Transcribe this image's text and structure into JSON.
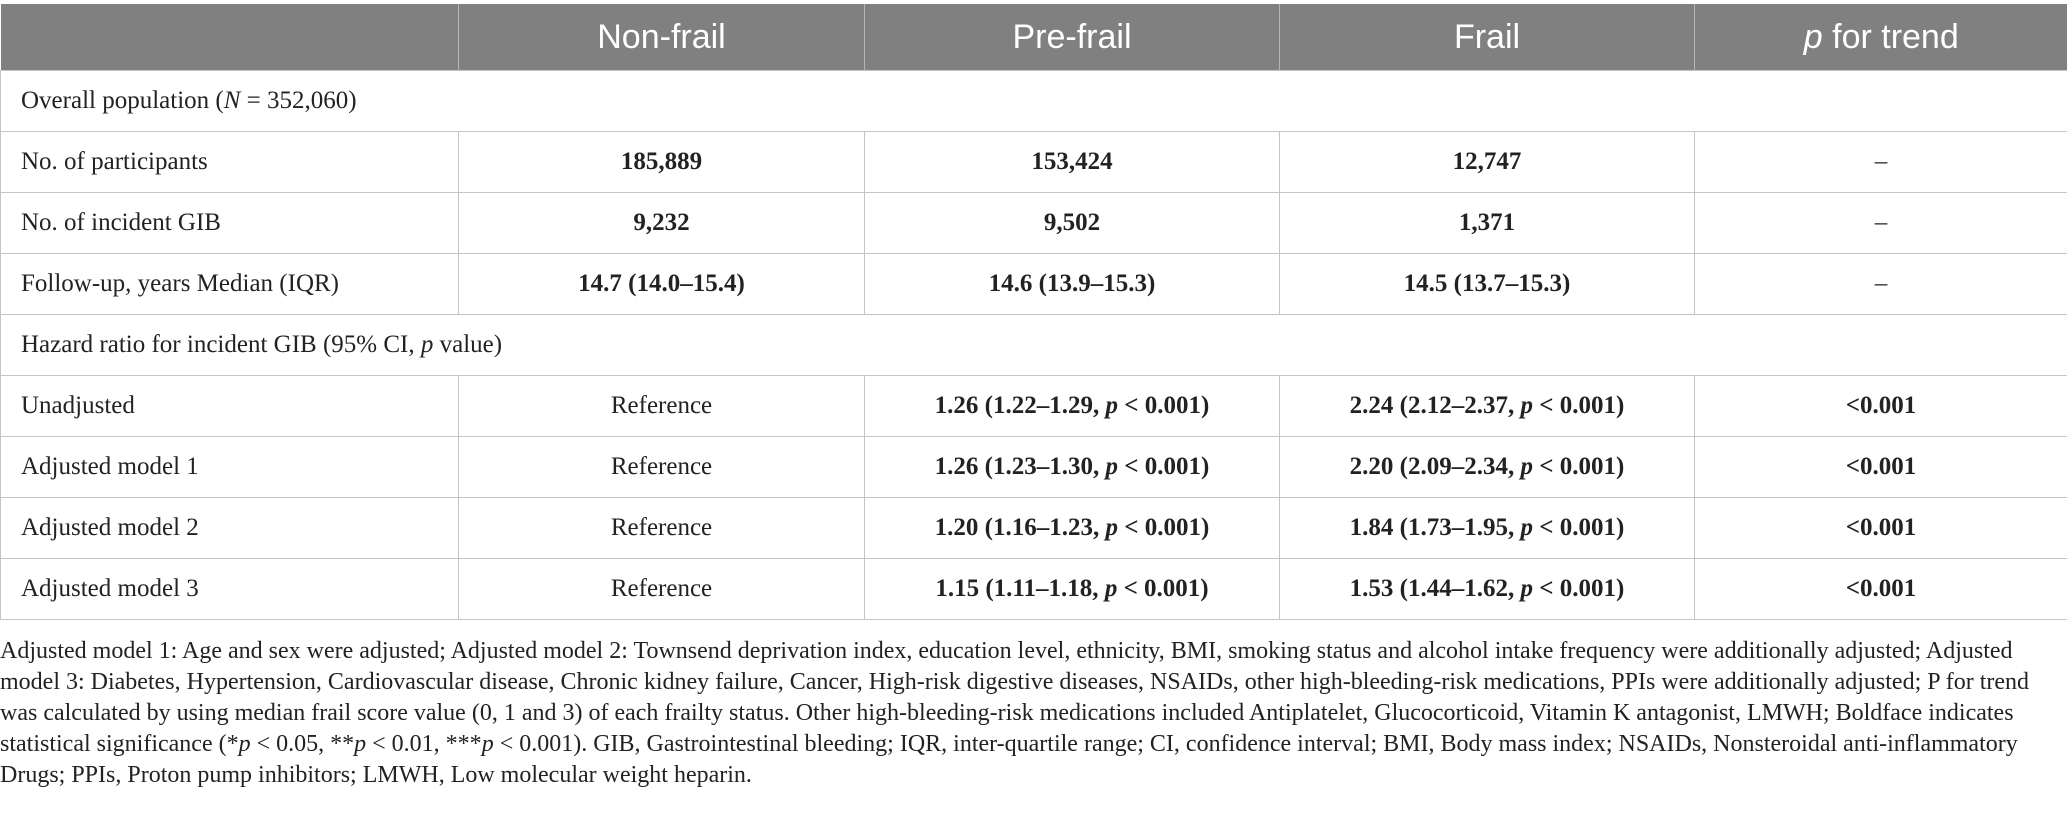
{
  "header": {
    "col0": "",
    "col1": "Non-frail",
    "col2": "Pre-frail",
    "col3": "Frail",
    "col4_italic": "p",
    "col4_rest": " for trend"
  },
  "section1": {
    "pre": "Overall population (",
    "italic": "N",
    "post": " = 352,060)"
  },
  "rows_counts": [
    {
      "label": "No. of participants",
      "nonfrail": "185,889",
      "prefrail": "153,424",
      "frail": "12,747",
      "trend": "–"
    },
    {
      "label": "No. of incident GIB",
      "nonfrail": "9,232",
      "prefrail": "9,502",
      "frail": "1,371",
      "trend": "–"
    },
    {
      "label": "Follow-up, years Median (IQR)",
      "nonfrail": "14.7 (14.0–15.4)",
      "prefrail": "14.6 (13.9–15.3)",
      "frail": "14.5 (13.7–15.3)",
      "trend": "–"
    }
  ],
  "section2": {
    "pre": "Hazard ratio for incident GIB (95% CI, ",
    "italic": "p",
    "post": " value)"
  },
  "rows_hr": [
    {
      "label": "Unadjusted",
      "nonfrail": "Reference",
      "prefrail_pre": "1.26 (1.22–1.29, ",
      "prefrail_p": "p",
      "prefrail_post": " < 0.001)",
      "frail_pre": "2.24 (2.12–2.37, ",
      "frail_p": "p",
      "frail_post": " < 0.001)",
      "trend": "<0.001"
    },
    {
      "label": "Adjusted model 1",
      "nonfrail": "Reference",
      "prefrail_pre": "1.26 (1.23–1.30, ",
      "prefrail_p": "p",
      "prefrail_post": " < 0.001)",
      "frail_pre": "2.20 (2.09–2.34, ",
      "frail_p": "p",
      "frail_post": " < 0.001)",
      "trend": "<0.001"
    },
    {
      "label": "Adjusted model 2",
      "nonfrail": "Reference",
      "prefrail_pre": "1.20 (1.16–1.23, ",
      "prefrail_p": "p",
      "prefrail_post": " < 0.001)",
      "frail_pre": "1.84 (1.73–1.95, ",
      "frail_p": "p",
      "frail_post": " < 0.001)",
      "trend": "<0.001"
    },
    {
      "label": "Adjusted model 3",
      "nonfrail": "Reference",
      "prefrail_pre": "1.15 (1.11–1.18, ",
      "prefrail_p": "p",
      "prefrail_post": " < 0.001)",
      "frail_pre": "1.53 (1.44–1.62, ",
      "frail_p": "p",
      "frail_post": " < 0.001)",
      "trend": "<0.001"
    }
  ],
  "footnote": {
    "part1": "Adjusted model 1: Age and sex were adjusted; Adjusted model 2: Townsend deprivation index, education level, ethnicity, BMI, smoking status and alcohol intake frequency were additionally adjusted; Adjusted model 3: Diabetes, Hypertension, Cardiovascular disease, Chronic kidney failure, Cancer, High-risk digestive diseases, NSAIDs, other high-bleeding-risk medications, PPIs were additionally adjusted; P for trend was calculated by using median frail score value (0, 1 and 3) of each frailty status. Other high-bleeding-risk medications included Antiplatelet, Glucocorticoid, Vitamin K antagonist, LMWH; Boldface indicates statistical significance (*",
    "p1": "p",
    "part2": " < 0.05, **",
    "p2": "p",
    "part3": " < 0.01, ***",
    "p3": "p",
    "part4": " < 0.001). GIB, Gastrointestinal bleeding; IQR, inter-quartile range; CI, confidence interval; BMI, Body mass index; NSAIDs, Nonsteroidal anti-inflammatory Drugs; PPIs, Proton pump inhibitors; LMWH, Low molecular weight heparin."
  },
  "colors": {
    "header_bg": "#808080",
    "header_text": "#ffffff",
    "border": "#c4c4c4",
    "text": "#222222"
  }
}
